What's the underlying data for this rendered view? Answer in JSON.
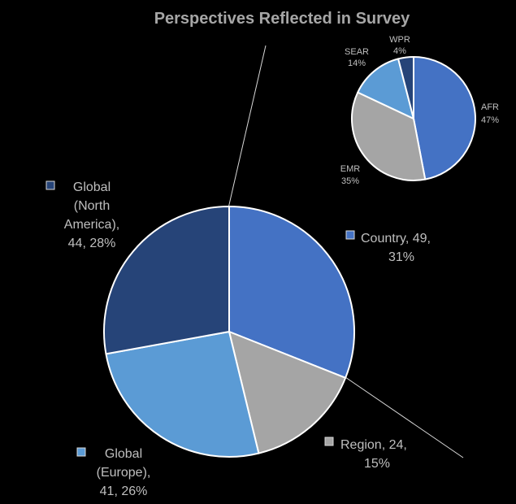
{
  "chart_data": {
    "type": "pie",
    "title": "Perspectives Reflected in Survey",
    "main_pie": {
      "slices": [
        {
          "name": "Country",
          "value": 49,
          "percent": "31%",
          "color": "#4472c4"
        },
        {
          "name": "Region",
          "value": 24,
          "percent": "15%",
          "color": "#a5a5a5"
        },
        {
          "name": "Global (Europe)",
          "value": 41,
          "percent": "26%",
          "color": "#5b9bd5"
        },
        {
          "name": "Global (North America)",
          "value": 44,
          "percent": "28%",
          "color": "#264478"
        }
      ],
      "labels": {
        "country": [
          "Country, 49,",
          "31%"
        ],
        "region": [
          "Region, 24,",
          "15%"
        ],
        "europe": [
          "Global",
          "(Europe),",
          "41, 26%"
        ],
        "north_america": [
          "Global",
          "(North",
          "America),",
          "44, 28%"
        ]
      }
    },
    "breakdown_pie": {
      "of_slice": "Region",
      "slices": [
        {
          "name": "AFR",
          "percent": 47,
          "label": "47%",
          "color": "#4472c4"
        },
        {
          "name": "EMR",
          "percent": 35,
          "label": "35%",
          "color": "#a5a5a5"
        },
        {
          "name": "SEAR",
          "percent": 14,
          "label": "14%",
          "color": "#5b9bd5"
        },
        {
          "name": "WPR",
          "percent": 4,
          "label": "4%",
          "color": "#264478"
        }
      ]
    },
    "legend": "inline"
  }
}
